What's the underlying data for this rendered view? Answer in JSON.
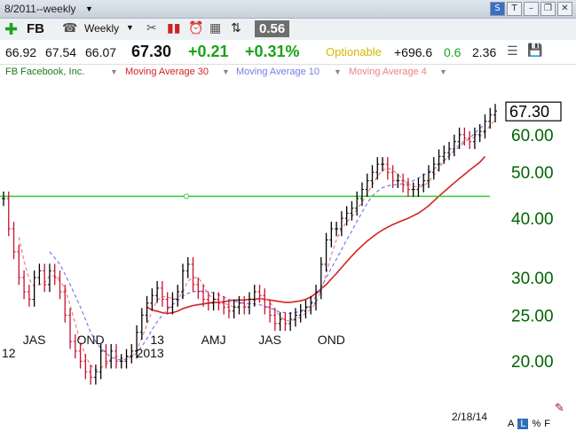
{
  "window": {
    "title": "8/2011--weekly"
  },
  "toolbar": {
    "symbol": "FB",
    "period": "Weekly",
    "score": "0.56"
  },
  "quote": {
    "open": "66.92",
    "high": "67.54",
    "low": "66.07",
    "close": "67.30",
    "change": "+0.21",
    "change_pct": "+0.31%",
    "optionable": "Optionable",
    "stat1": "+696.6",
    "stat2": "0.6",
    "stat3": "2.36"
  },
  "legend": {
    "symbol_name": "FB Facebook, Inc.",
    "ma30": "Moving Average 30",
    "ma10": "Moving Average 10",
    "ma4": "Moving Average 4"
  },
  "footer": {
    "date": "2/18/14",
    "buttons": [
      "A",
      "L",
      "%",
      "F"
    ]
  },
  "colors": {
    "bars_up": "#000000",
    "bars_down": "#c8102e",
    "ma30": "#d42222",
    "ma10": "#7a7ae6",
    "ma4": "#f08080",
    "trendline": "#33cc33",
    "price_tag": "#000000",
    "axis_labels": "#006400"
  },
  "chart_data": {
    "type": "line",
    "scale": "log",
    "ylim": [
      17,
      75
    ],
    "y_ticks": [
      "60.00",
      "50.00",
      "40.00",
      "30.00",
      "25.00",
      "20.00"
    ],
    "y_tick_values": [
      60,
      50,
      40,
      30,
      25,
      20
    ],
    "x_labels_top": [
      "JAS",
      "OND",
      "13",
      "AMJ",
      "JAS",
      "OND"
    ],
    "x_labels_bottom": [
      "12",
      "2013"
    ],
    "last_price_label": "67.30",
    "last_price": 67.3,
    "trendline": {
      "value": 44.5,
      "color": "#33cc33"
    },
    "weeks": 130,
    "x_label_week": [
      6,
      17,
      30,
      41,
      52,
      64
    ],
    "closes": [
      44,
      38,
      34,
      30,
      28,
      27,
      30,
      31,
      29,
      31,
      30,
      28,
      25,
      22,
      21,
      20,
      19,
      18.5,
      19,
      21,
      20,
      21,
      20,
      20,
      20.5,
      21,
      23,
      25,
      26.5,
      27.5,
      28.5,
      27,
      26,
      27,
      28,
      31,
      32,
      29,
      28,
      27,
      26.5,
      27,
      26.5,
      26,
      25.5,
      26,
      26.5,
      26,
      27,
      28,
      27.5,
      26,
      25,
      24,
      24.5,
      24,
      24.5,
      25,
      25.5,
      26,
      26.5,
      28,
      32,
      36,
      38,
      38,
      40,
      41,
      42,
      44,
      46,
      48,
      50,
      52,
      52,
      50,
      48,
      48,
      47,
      46,
      46,
      47,
      48,
      50,
      52,
      54,
      55,
      56,
      58,
      60,
      59,
      58,
      60,
      61,
      64,
      66,
      67.3
    ],
    "ma30": [
      null,
      null,
      null,
      null,
      null,
      null,
      null,
      null,
      null,
      null,
      null,
      null,
      null,
      null,
      null,
      null,
      null,
      null,
      null,
      null,
      null,
      null,
      null,
      null,
      null,
      null,
      null,
      null,
      26,
      25.6,
      25.5,
      25.3,
      25.2,
      25.3,
      25.5,
      25.8,
      26,
      26.2,
      26.3,
      26.4,
      26.5,
      26.6,
      26.6,
      26.7,
      26.8,
      26.9,
      26.9,
      26.9,
      27,
      27,
      27.1,
      27,
      26.9,
      26.8,
      26.7,
      26.6,
      26.6,
      26.7,
      26.8,
      27,
      27.3,
      27.8,
      28.4,
      29,
      29.8,
      30.6,
      31.5,
      32.4,
      33.3,
      34.2,
      35,
      35.8,
      36.5,
      37.2,
      37.8,
      38.3,
      38.8,
      39.2,
      39.6,
      40,
      40.5,
      41,
      41.7,
      42.5,
      43.5,
      44.5,
      45.5,
      46.5,
      47.5,
      48.5,
      49.5,
      50.5,
      51.5,
      52.5,
      54
    ],
    "ma10": [
      null,
      null,
      null,
      null,
      null,
      null,
      null,
      null,
      null,
      34,
      33,
      32,
      30.5,
      29,
      27.5,
      26,
      24.5,
      23,
      22,
      21.3,
      20.8,
      20.4,
      20.2,
      20.1,
      20.2,
      20.4,
      20.8,
      21.5,
      22.3,
      23.3,
      24.2,
      25,
      25.7,
      26.3,
      26.8,
      27.4,
      27.8,
      28,
      28.1,
      28.1,
      28,
      27.9,
      27.6,
      27.3,
      27,
      26.8,
      26.6,
      26.5,
      26.4,
      26.4,
      26.3,
      26.1,
      25.9,
      25.6,
      25.4,
      25.3,
      25.2,
      25.3,
      25.5,
      25.8,
      26.4,
      27.4,
      28.6,
      30,
      31.4,
      32.8,
      34.4,
      36,
      37.6,
      39.4,
      41.2,
      43,
      44.6,
      45.6,
      46.4,
      46.8,
      47,
      47.1,
      47.3,
      47.6,
      48,
      48.6,
      49.3,
      50,
      50.8,
      51.8,
      53,
      54.2,
      55.4,
      56.6,
      57.8,
      59,
      60.4,
      61.8,
      63.2
    ]
  }
}
